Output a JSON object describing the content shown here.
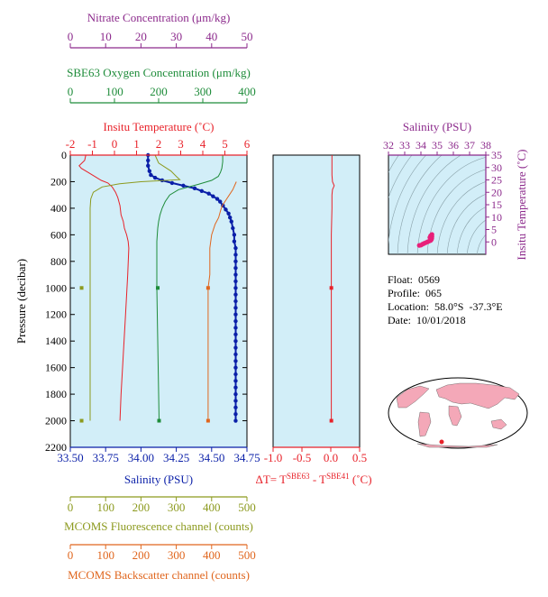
{
  "colors": {
    "panel_bg": "#d2eef8",
    "salinity": "#0a1fa8",
    "temperature": "#e8222a",
    "oxygen": "#1e8c3a",
    "nitrate": "#8c2a8c",
    "fluorescence": "#8c9a1e",
    "backscatter": "#e0661e",
    "ts_points": "#e8207a",
    "land": "#f4a8b8"
  },
  "info": {
    "float": "Float:  0569",
    "profile": "Profile:  065",
    "location": "Location:  58.0°S  -37.3°E",
    "date": "Date:  10/01/2018"
  },
  "chart_data": [
    {
      "type": "line",
      "name": "profile",
      "y_axis": {
        "label": "Pressure (decibar)",
        "range": [
          0,
          2200
        ],
        "ticks": [
          0,
          200,
          400,
          600,
          800,
          1000,
          1200,
          1400,
          1600,
          1800,
          2000,
          2200
        ],
        "inverted": true
      },
      "axes": {
        "nitrate": {
          "label": "Nitrate Concentration (μm/kg)",
          "range": [
            0,
            50
          ],
          "ticks": [
            0,
            10,
            20,
            30,
            40,
            50
          ]
        },
        "oxygen": {
          "label": "SBE63 Oxygen Concentration (μm/kg)",
          "range": [
            0,
            400
          ],
          "ticks": [
            0,
            100,
            200,
            300,
            400
          ]
        },
        "temperature": {
          "label": "Insitu Temperature (˚C)",
          "range": [
            -2,
            6
          ],
          "ticks": [
            -2,
            -1,
            0,
            1,
            2,
            3,
            4,
            5,
            6
          ]
        },
        "salinity": {
          "label": "Salinity (PSU)",
          "range": [
            33.5,
            34.75
          ],
          "ticks": [
            "33.50",
            "33.75",
            "34.00",
            "34.25",
            "34.50",
            "34.75"
          ]
        },
        "fluorescence": {
          "label": "MCOMS Fluorescence channel (counts)",
          "range": [
            0,
            500
          ],
          "ticks": [
            0,
            100,
            200,
            300,
            400,
            500
          ]
        },
        "backscatter": {
          "label": "MCOMS Backscatter channel (counts)",
          "range": [
            0,
            500
          ],
          "ticks": [
            0,
            100,
            200,
            300,
            400,
            500
          ]
        }
      },
      "series": [
        {
          "key": "salinity",
          "pressure": [
            0,
            40,
            80,
            120,
            150,
            170,
            190,
            210,
            230,
            250,
            270,
            290,
            310,
            330,
            350,
            380,
            410,
            440,
            470,
            500,
            550,
            600,
            650,
            700,
            750,
            800,
            850,
            900,
            950,
            1000,
            1050,
            1100,
            1150,
            1200,
            1250,
            1300,
            1350,
            1400,
            1450,
            1500,
            1550,
            1600,
            1650,
            1700,
            1750,
            1800,
            1850,
            1900,
            1950,
            2000
          ],
          "values": [
            34.05,
            34.05,
            34.05,
            34.06,
            34.07,
            34.1,
            34.15,
            34.22,
            34.3,
            34.38,
            34.43,
            34.48,
            34.51,
            34.54,
            34.56,
            34.58,
            34.6,
            34.62,
            34.63,
            34.64,
            34.65,
            34.66,
            34.66,
            34.67,
            34.67,
            34.67,
            34.67,
            34.67,
            34.67,
            34.67,
            34.67,
            34.67,
            34.67,
            34.67,
            34.67,
            34.67,
            34.67,
            34.67,
            34.67,
            34.67,
            34.67,
            34.67,
            34.67,
            34.67,
            34.67,
            34.67,
            34.67,
            34.67,
            34.67,
            34.67
          ]
        },
        {
          "key": "temperature",
          "pressure": [
            0,
            40,
            80,
            100,
            130,
            160,
            190,
            210,
            240,
            280,
            320,
            380,
            450,
            500,
            550,
            600,
            650,
            700,
            900,
            1200,
            1500,
            1800,
            2000
          ],
          "values": [
            -1.3,
            -1.35,
            -1.6,
            -1.5,
            -1.2,
            -0.9,
            -0.6,
            -0.3,
            -0.1,
            0.05,
            0.15,
            0.25,
            0.3,
            0.4,
            0.45,
            0.55,
            0.62,
            0.65,
            0.6,
            0.5,
            0.4,
            0.3,
            0.25
          ]
        },
        {
          "key": "oxygen",
          "pressure": [
            0,
            50,
            100,
            130,
            160,
            190,
            220,
            260,
            300,
            350,
            400,
            450,
            500,
            550,
            600,
            650,
            700,
            800,
            1000,
            1200,
            1400,
            1600,
            1800,
            2000
          ],
          "values": [
            345,
            345,
            343,
            340,
            335,
            320,
            290,
            245,
            225,
            215,
            208,
            203,
            200,
            198,
            197,
            196,
            196,
            196,
            196,
            197,
            198,
            199,
            200,
            201
          ]
        },
        {
          "key": "fluorescence",
          "pressure": [
            0,
            60,
            120,
            160,
            185,
            200,
            215,
            240,
            280,
            330,
            400,
            600,
            1000,
            1400,
            1800,
            2000
          ],
          "values": [
            240,
            250,
            285,
            300,
            310,
            200,
            140,
            90,
            65,
            58,
            56,
            56,
            56,
            56,
            56,
            56
          ]
        },
        {
          "key": "backscatter",
          "pressure": [
            200,
            260,
            300,
            340,
            380,
            420,
            470,
            520,
            600,
            700,
            800,
            900,
            1000,
            1100,
            1200,
            1300,
            1400,
            1500,
            1600,
            1700,
            1800,
            1900,
            2000
          ],
          "values": [
            470,
            460,
            450,
            440,
            430,
            425,
            420,
            410,
            400,
            395,
            395,
            395,
            390,
            390,
            390,
            390,
            390,
            390,
            390,
            390,
            390,
            390,
            390
          ]
        }
      ],
      "markers": {
        "pressure": [
          1000,
          2000
        ],
        "nitrate": [
          3.2,
          3.2
        ],
        "oxygen": [
          198,
          201
        ],
        "backscatter": [
          390,
          390
        ]
      }
    },
    {
      "type": "line",
      "name": "delta-T",
      "x_axis": {
        "label_prefix": "ΔT= T",
        "label_sup1": "SBE63",
        "label_mid": " - T",
        "label_sup2": "SBE41",
        "label_suffix": " (˚C)",
        "range": [
          -1.0,
          0.5
        ],
        "ticks": [
          "-1.0",
          "-0.5",
          "0.0",
          "0.5"
        ]
      },
      "series": [
        {
          "key": "delta_t",
          "pressure": [
            0,
            150,
            200,
            230,
            260,
            300,
            400,
            600,
            900,
            1200,
            1500,
            1800,
            2000
          ],
          "values": [
            0.02,
            0.02,
            0.03,
            0.06,
            0.03,
            0.02,
            0.02,
            0.01,
            0.01,
            0.01,
            0.01,
            0.01,
            0.01
          ]
        }
      ],
      "markers": {
        "pressure": [
          1000,
          2000
        ],
        "values": [
          0.01,
          0.01
        ]
      }
    },
    {
      "type": "scatter",
      "name": "TS-diagram",
      "x_axis": {
        "label": "Salinity (PSU)",
        "range": [
          32,
          38
        ],
        "ticks": [
          32,
          33,
          34,
          35,
          36,
          37,
          38
        ]
      },
      "y_axis": {
        "label": "Insitu Temperature (˚C)",
        "range": [
          -5,
          35
        ],
        "ticks": [
          0,
          5,
          10,
          15,
          20,
          25,
          30,
          35
        ]
      },
      "series": [
        {
          "name": "",
          "salinity": [
            33.9,
            34.0,
            34.1,
            34.2,
            34.3,
            34.4,
            34.5,
            34.6,
            34.65,
            34.67,
            34.68,
            34.68,
            34.6,
            34.55
          ],
          "temperature": [
            -1.4,
            -1.3,
            -0.9,
            -0.6,
            -0.3,
            0.0,
            0.3,
            0.6,
            1.0,
            1.5,
            2.2,
            3.0,
            2.5,
            1.8
          ]
        }
      ]
    }
  ]
}
